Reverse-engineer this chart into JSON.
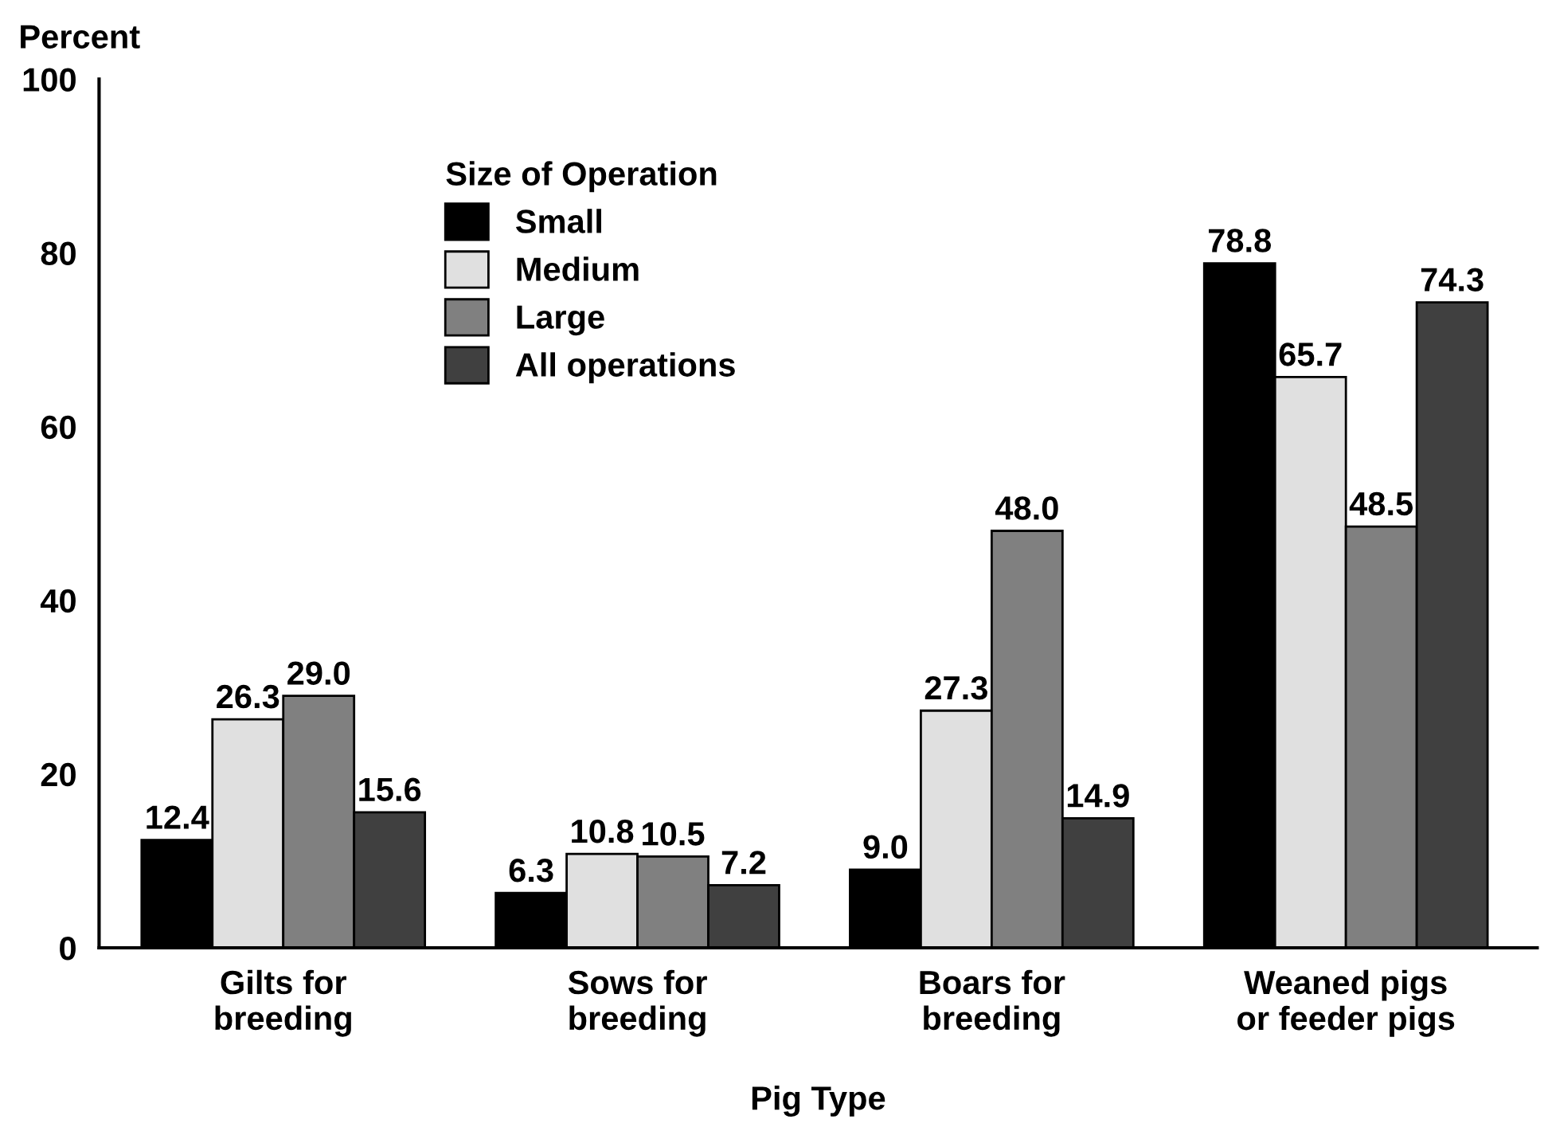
{
  "chart_data": {
    "type": "bar",
    "ylabel": "Percent",
    "xlabel": "Pig Type",
    "legend_title": "Size of Operation",
    "categories": [
      "Gilts for\nbreeding",
      "Sows for\nbreeding",
      "Boars for\nbreeding",
      "Weaned pigs\nor feeder pigs"
    ],
    "series": [
      {
        "name": "Small",
        "color": "#000000",
        "values": [
          12.4,
          6.3,
          9.0,
          78.8
        ],
        "value_labels": [
          "12.4",
          "6.3",
          "9.0",
          "78.8"
        ]
      },
      {
        "name": "Medium",
        "color": "#e0e0e0",
        "values": [
          26.3,
          10.8,
          27.3,
          65.7
        ],
        "value_labels": [
          "26.3",
          "10.8",
          "27.3",
          "65.7"
        ]
      },
      {
        "name": "Large",
        "color": "#808080",
        "values": [
          29.0,
          10.5,
          48.0,
          48.5
        ],
        "value_labels": [
          "29.0",
          "10.5",
          "48.0",
          "48.5"
        ]
      },
      {
        "name": "All operations",
        "color": "#404040",
        "values": [
          15.6,
          7.2,
          14.9,
          74.3
        ],
        "value_labels": [
          "15.6",
          "7.2",
          "14.9",
          "74.3"
        ]
      }
    ],
    "ylim": [
      0,
      100
    ],
    "yticks": [
      0,
      20,
      40,
      60,
      80,
      100
    ],
    "grid": false,
    "legend": "top left"
  }
}
